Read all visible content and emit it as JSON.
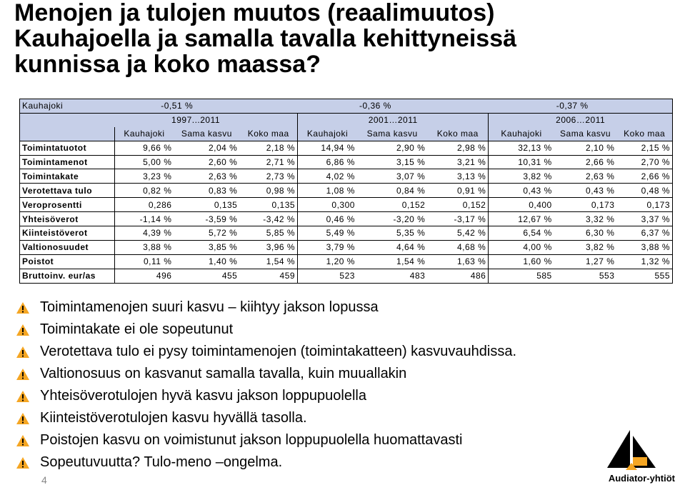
{
  "title": {
    "line1": "Menojen ja tulojen muutos (reaalimuutos)",
    "line2": "Kauhajoella ja samalla tavalla kehittyneissä",
    "line3": "kunnissa ja koko maassa?"
  },
  "table": {
    "top_row": {
      "label": "Kauhajoki",
      "v1": "-0,51 %",
      "v2": "-0,36 %",
      "v3": "-0,37 %"
    },
    "periods": [
      "1997...2011",
      "2001…2011",
      "2006…2011"
    ],
    "subheaders": [
      "Kauhajoki",
      "Sama kasvu",
      "Koko maa",
      "Kauhajoki",
      "Sama kasvu",
      "Koko maa",
      "Kauhajoki",
      "Sama kasvu",
      "Koko maa"
    ],
    "rows": [
      {
        "label": "Toimintatuotot",
        "values": [
          "9,66 %",
          "2,04 %",
          "2,18 %",
          "14,94 %",
          "2,90 %",
          "2,98 %",
          "32,13 %",
          "2,10 %",
          "2,15 %"
        ]
      },
      {
        "label": "Toimintamenot",
        "values": [
          "5,00 %",
          "2,60 %",
          "2,71 %",
          "6,86 %",
          "3,15 %",
          "3,21 %",
          "10,31 %",
          "2,66 %",
          "2,70 %"
        ]
      },
      {
        "label": "Toimintakate",
        "values": [
          "3,23 %",
          "2,63 %",
          "2,73 %",
          "4,02 %",
          "3,07 %",
          "3,13 %",
          "3,82 %",
          "2,63 %",
          "2,66 %"
        ]
      },
      {
        "label": "Verotettava tulo",
        "values": [
          "0,82 %",
          "0,83 %",
          "0,98 %",
          "1,08 %",
          "0,84 %",
          "0,91 %",
          "0,43 %",
          "0,43 %",
          "0,48 %"
        ]
      },
      {
        "label": "Veroprosentti",
        "values": [
          "0,286",
          "0,135",
          "0,135",
          "0,300",
          "0,152",
          "0,152",
          "0,400",
          "0,173",
          "0,173"
        ]
      },
      {
        "label": "Yhteisöverot",
        "values": [
          "-1,14 %",
          "-3,59 %",
          "-3,42 %",
          "0,46 %",
          "-3,20 %",
          "-3,17 %",
          "12,67 %",
          "3,32 %",
          "3,37 %"
        ]
      },
      {
        "label": "Kiinteistöverot",
        "values": [
          "4,39 %",
          "5,72 %",
          "5,85 %",
          "5,49 %",
          "5,35 %",
          "5,42 %",
          "6,54 %",
          "6,30 %",
          "6,37 %"
        ]
      },
      {
        "label": "Valtionosuudet",
        "values": [
          "3,88 %",
          "3,85 %",
          "3,96 %",
          "3,79 %",
          "4,64 %",
          "4,68 %",
          "4,00 %",
          "3,82 %",
          "3,88 %"
        ]
      },
      {
        "label": "Poistot",
        "values": [
          "0,11 %",
          "1,40 %",
          "1,54 %",
          "1,20 %",
          "1,54 %",
          "1,63 %",
          "1,60 %",
          "1,27 %",
          "1,32 %"
        ]
      },
      {
        "label": "Bruttoinv. eur/as",
        "values": [
          "496",
          "455",
          "459",
          "523",
          "483",
          "486",
          "585",
          "553",
          "555"
        ]
      }
    ]
  },
  "bullets": [
    "Toimintamenojen suuri kasvu – kiihtyy jakson lopussa",
    "Toimintakate ei ole sopeutunut",
    "Verotettava tulo ei pysy toimintamenojen (toimintakatteen) kasvuvauhdissa.",
    "Valtionosuus on kasvanut samalla tavalla, kuin muuallakin",
    "Yhteisöverotulojen hyvä kasvu jakson loppupuolella",
    "Kiinteistöverotulojen kasvu hyvällä tasolla.",
    "Poistojen kasvu on voimistunut jakson loppupuolella huomattavasti",
    "Sopeutuvuutta? Tulo-meno –ongelma."
  ],
  "bullet_icon": "warning-triangle-icon",
  "colors": {
    "header_bg": "#c6cfe8",
    "icon_orange": "#f5a623"
  },
  "page_number": "4",
  "logo": {
    "name": "Audiator-yhtiöt",
    "icon": "sailboat-logo-icon"
  }
}
